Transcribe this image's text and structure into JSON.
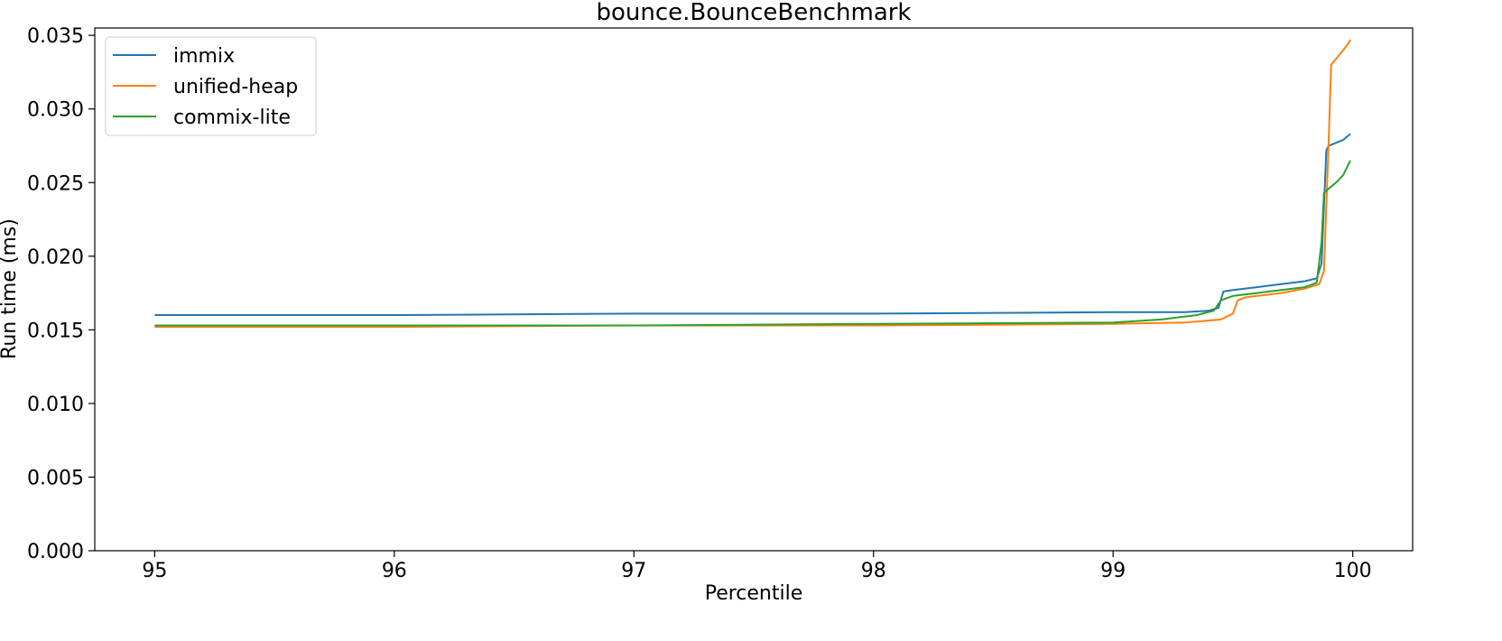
{
  "chart_data": {
    "type": "line",
    "title": "bounce.BounceBenchmark",
    "xlabel": "Percentile",
    "ylabel": "Run time (ms)",
    "xlim": [
      94.75,
      100.25
    ],
    "ylim": [
      0.0,
      0.0355
    ],
    "xticks": [
      95,
      96,
      97,
      98,
      99,
      100
    ],
    "yticks": [
      0.0,
      0.005,
      0.01,
      0.015,
      0.02,
      0.025,
      0.03,
      0.035
    ],
    "ytick_labels": [
      "0.000",
      "0.005",
      "0.010",
      "0.015",
      "0.020",
      "0.025",
      "0.030",
      "0.035"
    ],
    "grid": false,
    "legend_position": "top-left",
    "series": [
      {
        "name": "immix",
        "color": "#1f77b4",
        "x": [
          95.0,
          96.0,
          97.0,
          98.0,
          99.0,
          99.3,
          99.4,
          99.44,
          99.46,
          99.5,
          99.6,
          99.7,
          99.8,
          99.85,
          99.87,
          99.89,
          99.9,
          99.93,
          99.96,
          99.99
        ],
        "y": [
          0.016,
          0.016,
          0.0161,
          0.0161,
          0.0162,
          0.0162,
          0.0163,
          0.0165,
          0.0176,
          0.0177,
          0.0179,
          0.0181,
          0.0183,
          0.0185,
          0.0195,
          0.0272,
          0.0275,
          0.0277,
          0.0279,
          0.0283
        ]
      },
      {
        "name": "unified-heap",
        "color": "#ff7f0e",
        "x": [
          95.0,
          96.0,
          97.0,
          98.0,
          99.0,
          99.3,
          99.45,
          99.5,
          99.52,
          99.55,
          99.6,
          99.7,
          99.8,
          99.86,
          99.88,
          99.9,
          99.91,
          99.95,
          99.98,
          99.99
        ],
        "y": [
          0.0152,
          0.0152,
          0.0153,
          0.0153,
          0.0154,
          0.0155,
          0.0157,
          0.0161,
          0.017,
          0.0172,
          0.0173,
          0.0175,
          0.0178,
          0.0181,
          0.019,
          0.028,
          0.033,
          0.0338,
          0.0344,
          0.0347
        ]
      },
      {
        "name": "commix-lite",
        "color": "#2ca02c",
        "x": [
          95.0,
          96.0,
          97.0,
          98.0,
          99.0,
          99.2,
          99.35,
          99.42,
          99.45,
          99.5,
          99.6,
          99.7,
          99.8,
          99.85,
          99.87,
          99.88,
          99.9,
          99.93,
          99.96,
          99.99
        ],
        "y": [
          0.0153,
          0.0153,
          0.0153,
          0.0154,
          0.0155,
          0.0157,
          0.016,
          0.0163,
          0.017,
          0.0173,
          0.0175,
          0.0177,
          0.0179,
          0.0182,
          0.021,
          0.0243,
          0.0246,
          0.025,
          0.0255,
          0.0265
        ]
      }
    ]
  }
}
